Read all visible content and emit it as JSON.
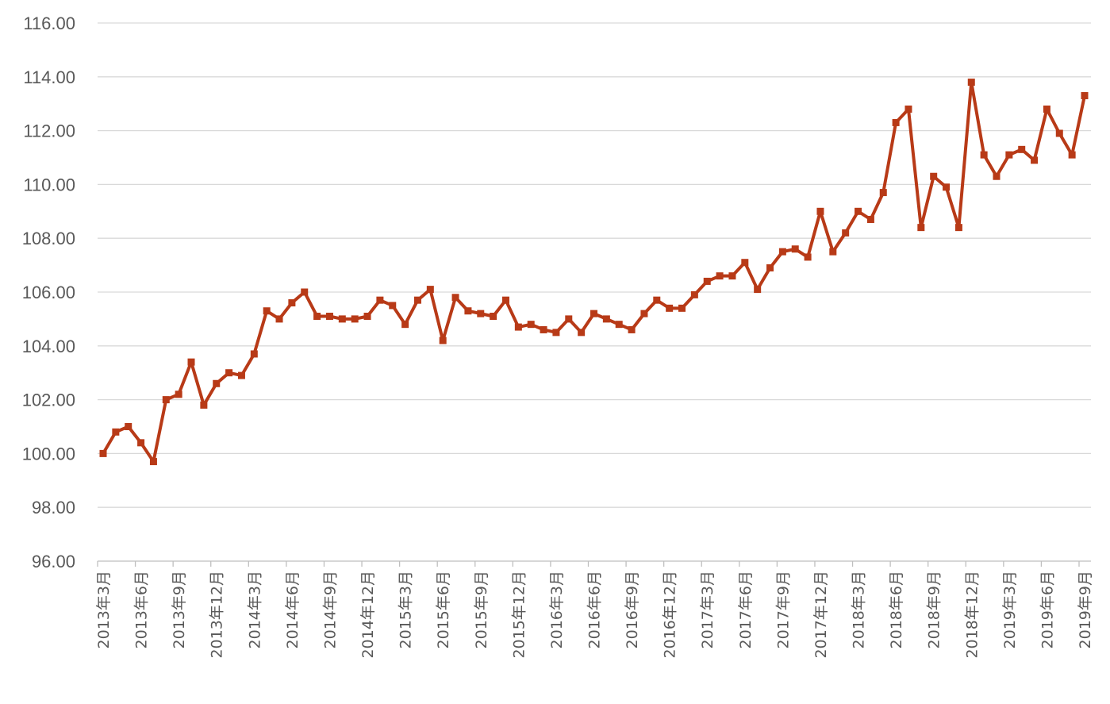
{
  "chart_data": {
    "type": "line",
    "ylim": [
      96,
      116
    ],
    "ytick_step": 2,
    "ytick_labels": [
      "96.00",
      "98.00",
      "100.00",
      "102.00",
      "104.00",
      "106.00",
      "108.00",
      "110.00",
      "112.00",
      "114.00",
      "116.00"
    ],
    "grid": true,
    "legend": "none",
    "x_tick_labels": [
      "2013年3月",
      "2013年6月",
      "2013年9月",
      "2013年12月",
      "2014年3月",
      "2014年6月",
      "2014年9月",
      "2014年12月",
      "2015年3月",
      "2015年6月",
      "2015年9月",
      "2015年12月",
      "2016年3月",
      "2016年6月",
      "2016年9月",
      "2016年12月",
      "2017年3月",
      "2017年6月",
      "2017年9月",
      "2017年12月",
      "2018年3月",
      "2018年6月",
      "2018年9月",
      "2018年12月",
      "2019年3月",
      "2019年6月",
      "2019年9月"
    ],
    "series": [
      {
        "color": "#B83A17",
        "values": [
          100.0,
          100.8,
          101.0,
          100.4,
          99.7,
          102.0,
          102.2,
          103.4,
          101.8,
          102.6,
          103.0,
          102.9,
          103.7,
          105.3,
          105.0,
          105.6,
          106.0,
          105.1,
          105.1,
          105.0,
          105.0,
          105.1,
          105.7,
          105.5,
          104.8,
          105.7,
          106.1,
          104.2,
          105.8,
          105.3,
          105.2,
          105.1,
          105.7,
          104.7,
          104.8,
          104.6,
          104.5,
          105.0,
          104.5,
          105.2,
          105.0,
          104.8,
          104.6,
          105.2,
          105.7,
          105.4,
          105.4,
          105.9,
          106.4,
          106.6,
          106.6,
          107.1,
          106.1,
          106.9,
          107.5,
          107.6,
          107.3,
          109.0,
          107.5,
          108.2,
          109.0,
          108.7,
          109.7,
          112.3,
          112.8,
          108.4,
          110.3,
          109.9,
          108.4,
          113.8,
          111.1,
          110.3,
          111.1,
          111.3,
          110.9,
          112.8,
          111.9,
          111.1,
          113.3
        ]
      }
    ]
  }
}
